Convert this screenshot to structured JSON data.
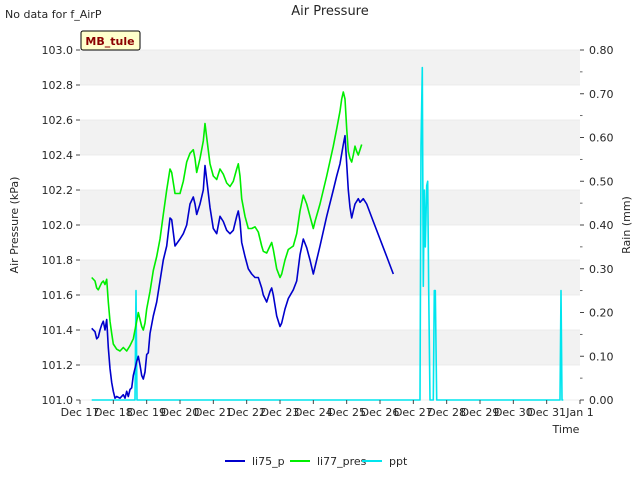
{
  "no_data_text": "No data for f_AirP",
  "station_badge": "MB_tule",
  "colors": {
    "li75_p": "#0000cc",
    "li77_pres": "#00ee00",
    "ppt": "#00e5ee",
    "band": "#f2f2f2",
    "badge_bg": "#ffffcc",
    "badge_text": "#8b0000"
  },
  "chart_data": {
    "type": "line",
    "title": "Air Pressure",
    "xlabel": "Time",
    "ylabel": "Air Pressure (kPa)",
    "y2label": "Rain (mm)",
    "xlim": [
      0,
      15
    ],
    "ylim": [
      101.0,
      103.0
    ],
    "y2lim": [
      0.0,
      0.8
    ],
    "x_ticks": [
      {
        "x": 0,
        "label": "Dec 17"
      },
      {
        "x": 1,
        "label": "Dec 18"
      },
      {
        "x": 2,
        "label": "Dec 19"
      },
      {
        "x": 3,
        "label": "Dec 20"
      },
      {
        "x": 4,
        "label": "Dec 21"
      },
      {
        "x": 5,
        "label": "Dec 22"
      },
      {
        "x": 6,
        "label": "Dec 23"
      },
      {
        "x": 7,
        "label": "Dec 24"
      },
      {
        "x": 8,
        "label": "Dec 25"
      },
      {
        "x": 9,
        "label": "Dec 26"
      },
      {
        "x": 10,
        "label": "Dec 27"
      },
      {
        "x": 11,
        "label": "Dec 28"
      },
      {
        "x": 12,
        "label": "Dec 29"
      },
      {
        "x": 13,
        "label": "Dec 30"
      },
      {
        "x": 14,
        "label": "Dec 31"
      },
      {
        "x": 15,
        "label": "Jan 1"
      }
    ],
    "y_ticks": [
      "101.0",
      "101.2",
      "101.4",
      "101.6",
      "101.8",
      "102.0",
      "102.2",
      "102.4",
      "102.6",
      "102.8",
      "103.0"
    ],
    "y2_ticks": [
      "0.00",
      "0.10",
      "0.20",
      "0.30",
      "0.40",
      "0.50",
      "0.60",
      "0.70",
      "0.80"
    ],
    "legend": [
      "li75_p",
      "li77_pres",
      "ppt"
    ],
    "legend_position": "bottom-center",
    "series": [
      {
        "name": "li75_p",
        "axis": "left",
        "points": [
          [
            0.35,
            101.41
          ],
          [
            0.45,
            101.39
          ],
          [
            0.5,
            101.35
          ],
          [
            0.55,
            101.36
          ],
          [
            0.6,
            101.4
          ],
          [
            0.65,
            101.43
          ],
          [
            0.7,
            101.45
          ],
          [
            0.75,
            101.4
          ],
          [
            0.8,
            101.46
          ],
          [
            0.85,
            101.3
          ],
          [
            0.9,
            101.18
          ],
          [
            0.95,
            101.1
          ],
          [
            1.0,
            101.05
          ],
          [
            1.05,
            101.01
          ],
          [
            1.1,
            101.02
          ],
          [
            1.2,
            101.01
          ],
          [
            1.3,
            101.03
          ],
          [
            1.35,
            101.01
          ],
          [
            1.4,
            101.05
          ],
          [
            1.45,
            101.02
          ],
          [
            1.5,
            101.06
          ],
          [
            1.55,
            101.07
          ],
          [
            1.6,
            101.14
          ],
          [
            1.7,
            101.22
          ],
          [
            1.75,
            101.25
          ],
          [
            1.8,
            101.2
          ],
          [
            1.85,
            101.14
          ],
          [
            1.9,
            101.12
          ],
          [
            1.95,
            101.16
          ],
          [
            2.0,
            101.26
          ],
          [
            2.05,
            101.27
          ],
          [
            2.1,
            101.38
          ],
          [
            2.2,
            101.48
          ],
          [
            2.3,
            101.56
          ],
          [
            2.4,
            101.68
          ],
          [
            2.5,
            101.8
          ],
          [
            2.6,
            101.88
          ],
          [
            2.7,
            102.04
          ],
          [
            2.75,
            102.03
          ],
          [
            2.85,
            101.88
          ],
          [
            3.0,
            101.92
          ],
          [
            3.1,
            101.95
          ],
          [
            3.2,
            102.0
          ],
          [
            3.3,
            102.12
          ],
          [
            3.4,
            102.16
          ],
          [
            3.45,
            102.12
          ],
          [
            3.5,
            102.06
          ],
          [
            3.6,
            102.12
          ],
          [
            3.7,
            102.2
          ],
          [
            3.75,
            102.34
          ],
          [
            3.8,
            102.26
          ],
          [
            3.9,
            102.1
          ],
          [
            4.0,
            101.98
          ],
          [
            4.1,
            101.95
          ],
          [
            4.2,
            102.05
          ],
          [
            4.3,
            102.02
          ],
          [
            4.4,
            101.97
          ],
          [
            4.5,
            101.95
          ],
          [
            4.6,
            101.97
          ],
          [
            4.7,
            102.05
          ],
          [
            4.75,
            102.08
          ],
          [
            4.8,
            102.02
          ],
          [
            4.85,
            101.9
          ],
          [
            4.95,
            101.82
          ],
          [
            5.05,
            101.75
          ],
          [
            5.15,
            101.72
          ],
          [
            5.25,
            101.7
          ],
          [
            5.35,
            101.7
          ],
          [
            5.45,
            101.64
          ],
          [
            5.5,
            101.6
          ],
          [
            5.6,
            101.56
          ],
          [
            5.7,
            101.62
          ],
          [
            5.75,
            101.64
          ],
          [
            5.8,
            101.6
          ],
          [
            5.9,
            101.48
          ],
          [
            6.0,
            101.42
          ],
          [
            6.05,
            101.44
          ],
          [
            6.15,
            101.52
          ],
          [
            6.25,
            101.58
          ],
          [
            6.4,
            101.63
          ],
          [
            6.5,
            101.68
          ],
          [
            6.6,
            101.83
          ],
          [
            6.7,
            101.92
          ],
          [
            6.8,
            101.87
          ],
          [
            6.9,
            101.8
          ],
          [
            7.0,
            101.72
          ],
          [
            7.05,
            101.76
          ],
          [
            7.2,
            101.88
          ],
          [
            7.4,
            102.05
          ],
          [
            7.6,
            102.2
          ],
          [
            7.7,
            102.28
          ],
          [
            7.8,
            102.35
          ],
          [
            7.9,
            102.46
          ],
          [
            7.95,
            102.51
          ],
          [
            8.0,
            102.35
          ],
          [
            8.05,
            102.2
          ],
          [
            8.1,
            102.1
          ],
          [
            8.15,
            102.04
          ],
          [
            8.2,
            102.08
          ],
          [
            8.25,
            102.12
          ],
          [
            8.35,
            102.15
          ],
          [
            8.4,
            102.13
          ],
          [
            8.5,
            102.15
          ],
          [
            8.6,
            102.12
          ],
          [
            8.8,
            102.02
          ],
          [
            9.0,
            101.92
          ],
          [
            9.2,
            101.82
          ],
          [
            9.4,
            101.72
          ]
        ]
      },
      {
        "name": "li77_pres",
        "axis": "left",
        "points": [
          [
            0.35,
            101.7
          ],
          [
            0.45,
            101.68
          ],
          [
            0.5,
            101.64
          ],
          [
            0.55,
            101.63
          ],
          [
            0.6,
            101.65
          ],
          [
            0.65,
            101.67
          ],
          [
            0.7,
            101.68
          ],
          [
            0.75,
            101.66
          ],
          [
            0.8,
            101.69
          ],
          [
            0.85,
            101.56
          ],
          [
            0.9,
            101.45
          ],
          [
            0.95,
            101.38
          ],
          [
            1.0,
            101.32
          ],
          [
            1.1,
            101.29
          ],
          [
            1.2,
            101.28
          ],
          [
            1.3,
            101.3
          ],
          [
            1.4,
            101.28
          ],
          [
            1.5,
            101.31
          ],
          [
            1.6,
            101.35
          ],
          [
            1.7,
            101.45
          ],
          [
            1.75,
            101.5
          ],
          [
            1.8,
            101.46
          ],
          [
            1.85,
            101.42
          ],
          [
            1.9,
            101.4
          ],
          [
            1.95,
            101.44
          ],
          [
            2.0,
            101.52
          ],
          [
            2.1,
            101.62
          ],
          [
            2.2,
            101.74
          ],
          [
            2.3,
            101.82
          ],
          [
            2.4,
            101.92
          ],
          [
            2.5,
            102.06
          ],
          [
            2.6,
            102.2
          ],
          [
            2.7,
            102.32
          ],
          [
            2.75,
            102.3
          ],
          [
            2.85,
            102.18
          ],
          [
            3.0,
            102.18
          ],
          [
            3.1,
            102.25
          ],
          [
            3.2,
            102.36
          ],
          [
            3.3,
            102.41
          ],
          [
            3.4,
            102.43
          ],
          [
            3.45,
            102.38
          ],
          [
            3.5,
            102.3
          ],
          [
            3.6,
            102.38
          ],
          [
            3.7,
            102.48
          ],
          [
            3.75,
            102.58
          ],
          [
            3.8,
            102.5
          ],
          [
            3.9,
            102.35
          ],
          [
            4.0,
            102.28
          ],
          [
            4.1,
            102.26
          ],
          [
            4.2,
            102.32
          ],
          [
            4.3,
            102.29
          ],
          [
            4.4,
            102.24
          ],
          [
            4.5,
            102.22
          ],
          [
            4.6,
            102.25
          ],
          [
            4.7,
            102.32
          ],
          [
            4.75,
            102.35
          ],
          [
            4.8,
            102.28
          ],
          [
            4.85,
            102.15
          ],
          [
            4.95,
            102.05
          ],
          [
            5.05,
            101.98
          ],
          [
            5.15,
            101.98
          ],
          [
            5.25,
            101.99
          ],
          [
            5.35,
            101.96
          ],
          [
            5.45,
            101.88
          ],
          [
            5.5,
            101.85
          ],
          [
            5.6,
            101.84
          ],
          [
            5.7,
            101.88
          ],
          [
            5.75,
            101.9
          ],
          [
            5.8,
            101.86
          ],
          [
            5.9,
            101.75
          ],
          [
            6.0,
            101.7
          ],
          [
            6.05,
            101.72
          ],
          [
            6.15,
            101.8
          ],
          [
            6.25,
            101.86
          ],
          [
            6.4,
            101.88
          ],
          [
            6.5,
            101.95
          ],
          [
            6.6,
            102.08
          ],
          [
            6.7,
            102.17
          ],
          [
            6.8,
            102.12
          ],
          [
            6.9,
            102.05
          ],
          [
            7.0,
            101.98
          ],
          [
            7.05,
            102.02
          ],
          [
            7.2,
            102.12
          ],
          [
            7.4,
            102.28
          ],
          [
            7.6,
            102.45
          ],
          [
            7.7,
            102.55
          ],
          [
            7.8,
            102.65
          ],
          [
            7.85,
            102.72
          ],
          [
            7.9,
            102.76
          ],
          [
            7.95,
            102.72
          ],
          [
            8.0,
            102.55
          ],
          [
            8.05,
            102.42
          ],
          [
            8.1,
            102.38
          ],
          [
            8.15,
            102.36
          ],
          [
            8.2,
            102.4
          ],
          [
            8.25,
            102.45
          ],
          [
            8.3,
            102.42
          ],
          [
            8.35,
            102.4
          ],
          [
            8.4,
            102.43
          ],
          [
            8.45,
            102.46
          ]
        ]
      },
      {
        "name": "ppt",
        "axis": "right",
        "points": [
          [
            0.35,
            0
          ],
          [
            1.65,
            0
          ],
          [
            1.68,
            0.25
          ],
          [
            1.71,
            0
          ],
          [
            10.2,
            0
          ],
          [
            10.23,
            0.58
          ],
          [
            10.27,
            0.76
          ],
          [
            10.3,
            0.26
          ],
          [
            10.33,
            0.48
          ],
          [
            10.36,
            0.35
          ],
          [
            10.4,
            0.49
          ],
          [
            10.43,
            0.5
          ],
          [
            10.46,
            0.25
          ],
          [
            10.5,
            0
          ],
          [
            10.6,
            0
          ],
          [
            10.63,
            0.25
          ],
          [
            10.66,
            0.25
          ],
          [
            10.7,
            0
          ],
          [
            14.4,
            0
          ],
          [
            14.43,
            0.25
          ],
          [
            14.46,
            0
          ],
          [
            14.5,
            0
          ]
        ]
      }
    ]
  }
}
